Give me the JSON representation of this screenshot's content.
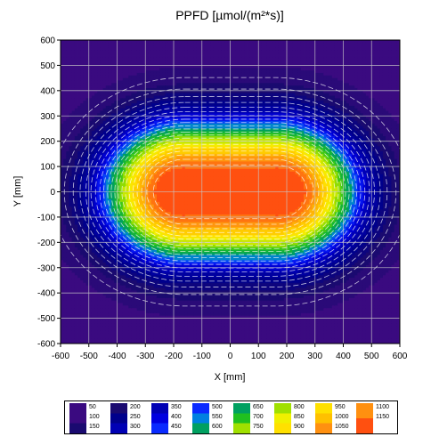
{
  "chart_data": {
    "type": "heatmap",
    "title": "PPFD [µmol/(m²*s)]",
    "xlabel": "X [mm]",
    "ylabel": "Y [mm]",
    "xlim": [
      -600,
      600
    ],
    "ylim": [
      -600,
      600
    ],
    "x_ticks": [
      "-600",
      "-500",
      "-400",
      "-300",
      "-200",
      "-100",
      "0",
      "100",
      "200",
      "300",
      "400",
      "500",
      "600"
    ],
    "y_ticks": [
      "600",
      "500",
      "400",
      "300",
      "200",
      "100",
      "0",
      "-100",
      "-200",
      "-300",
      "-400",
      "-500",
      "-600"
    ],
    "grid": true,
    "contour_step": 50,
    "peak_value_approx": 1150,
    "peak_locations": [
      [
        -200,
        0
      ],
      [
        200,
        0
      ]
    ],
    "corner_value_approx": 50,
    "legend_placement": "bottom",
    "legend": [
      {
        "colors": [
          "#3a0a80",
          "#3a0a80",
          "#1a0a70"
        ],
        "labels": [
          "50",
          "100",
          "150"
        ]
      },
      {
        "colors": [
          "#1a0a70",
          "#00008c",
          "#0000b4"
        ],
        "labels": [
          "200",
          "250",
          "300"
        ]
      },
      {
        "colors": [
          "#0000b4",
          "#0000e0",
          "#0a2aff"
        ],
        "labels": [
          "350",
          "400",
          "450"
        ]
      },
      {
        "colors": [
          "#0a2aff",
          "#0080e0",
          "#00a060"
        ],
        "labels": [
          "500",
          "550",
          "600"
        ]
      },
      {
        "colors": [
          "#00a060",
          "#20c020",
          "#a0e000"
        ],
        "labels": [
          "650",
          "700",
          "750"
        ]
      },
      {
        "colors": [
          "#a0e000",
          "#f0f000",
          "#ffe000"
        ],
        "labels": [
          "800",
          "850",
          "900"
        ]
      },
      {
        "colors": [
          "#ffe000",
          "#ffc000",
          "#ff9010"
        ],
        "labels": [
          "950",
          "1000",
          "1050"
        ]
      },
      {
        "colors": [
          "#ff9010",
          "#ff5010"
        ],
        "labels": [
          "1100",
          "1150"
        ]
      }
    ]
  }
}
